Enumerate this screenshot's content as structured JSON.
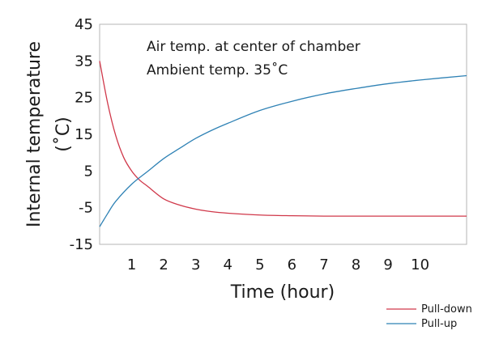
{
  "chart_data": {
    "type": "line",
    "title": "",
    "annotations": [
      "Air temp. at center of chamber",
      "Ambient temp. 35˚C"
    ],
    "xlabel": "Time (hour)",
    "ylabel": "Internal temperature",
    "ylabel_unit": "(˚C)",
    "xlim": [
      0,
      11.45
    ],
    "ylim": [
      -15,
      45
    ],
    "xticks": [
      1,
      2,
      3,
      4,
      5,
      6,
      7,
      8,
      9,
      10
    ],
    "yticks": [
      -15,
      -5,
      5,
      15,
      25,
      35,
      45
    ],
    "ytick_labels": [
      "-15",
      "-5",
      "5",
      "15",
      "25",
      "35",
      "45"
    ],
    "xtick_labels": [
      "1",
      "2",
      "3",
      "4",
      "5",
      "6",
      "7",
      "8",
      "9",
      "10"
    ],
    "legend_position": "bottom-right",
    "series": [
      {
        "name": "Pull-down",
        "color": "#d0384a",
        "x": [
          0,
          0.25,
          0.5,
          0.75,
          1.0,
          1.25,
          1.5,
          2.0,
          2.5,
          3.0,
          3.5,
          4.0,
          5.0,
          6.0,
          7.0,
          8.0,
          9.0,
          10.0,
          11.45
        ],
        "y": [
          35,
          23.5,
          14.7,
          8.7,
          5.0,
          2.5,
          0.8,
          -2.6,
          -4.3,
          -5.4,
          -6.1,
          -6.5,
          -7.0,
          -7.2,
          -7.3,
          -7.3,
          -7.3,
          -7.3,
          -7.3
        ]
      },
      {
        "name": "Pull-up",
        "color": "#2f82b5",
        "x": [
          0,
          0.25,
          0.5,
          1.0,
          1.5,
          2.0,
          2.5,
          3.0,
          3.5,
          4.0,
          5.0,
          6.0,
          7.0,
          8.0,
          9.0,
          10.0,
          11.45
        ],
        "y": [
          -10.2,
          -6.6,
          -3.3,
          1.4,
          4.9,
          8.4,
          11.2,
          13.9,
          16.1,
          18.0,
          21.5,
          24.0,
          26.0,
          27.5,
          28.8,
          29.8,
          31.0
        ]
      }
    ]
  }
}
